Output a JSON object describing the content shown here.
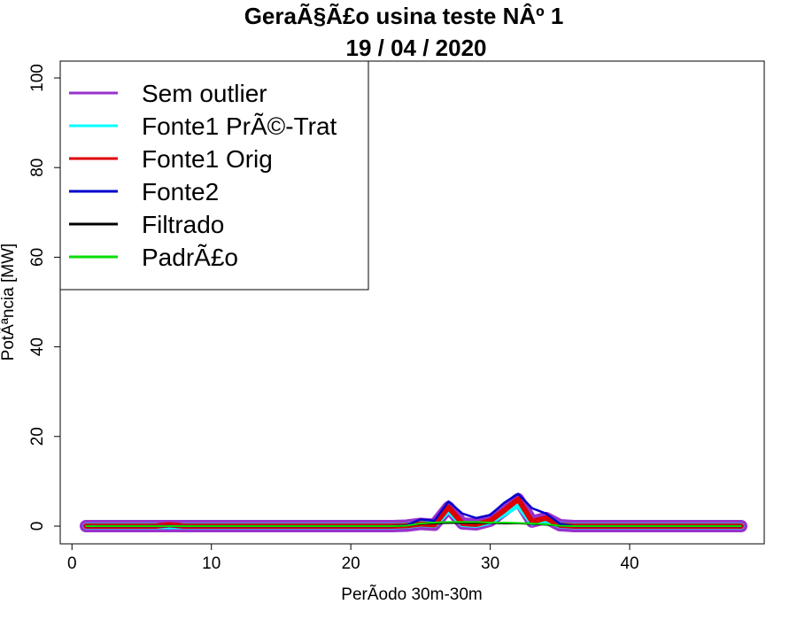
{
  "chart_data": {
    "type": "line",
    "title": "GeraÃ§Ã£o usina teste NÂº 1",
    "subtitle": "19 / 04 / 2020",
    "xlabel": "PerÃ­odo 30m-30m",
    "ylabel": "PotÃªncia [MW]",
    "xlim": [
      1,
      48
    ],
    "ylim": [
      0,
      100
    ],
    "x_ticks": [
      0,
      10,
      20,
      30,
      40
    ],
    "y_ticks": [
      0,
      20,
      40,
      60,
      80,
      100
    ],
    "grid": false,
    "legend_position": "top-left",
    "x": [
      1,
      2,
      3,
      4,
      5,
      6,
      7,
      8,
      9,
      10,
      11,
      12,
      13,
      14,
      15,
      16,
      17,
      18,
      19,
      20,
      21,
      22,
      23,
      24,
      25,
      26,
      27,
      28,
      29,
      30,
      31,
      32,
      33,
      34,
      35,
      36,
      37,
      38,
      39,
      40,
      41,
      42,
      43,
      44,
      45,
      46,
      47,
      48
    ],
    "series": [
      {
        "name": "Sem outlier",
        "color": "#9932CC",
        "values": [
          0,
          0,
          0,
          0,
          0,
          0,
          0,
          0,
          0,
          0,
          0,
          0,
          0,
          0,
          0,
          0,
          0,
          0,
          0,
          0,
          0,
          0,
          0,
          0.1,
          0.5,
          0.3,
          4.2,
          0.6,
          0.4,
          1.2,
          3.5,
          6.0,
          1.0,
          1.8,
          0.2,
          0,
          0,
          0,
          0,
          0,
          0,
          0,
          0,
          0,
          0,
          0,
          0,
          0
        ]
      },
      {
        "name": "Fonte1 PrÃ©-Trat",
        "color": "#00FFFF",
        "values": [
          0,
          0,
          0,
          0,
          0,
          0,
          0,
          0,
          0,
          0,
          0,
          0,
          0,
          0,
          0,
          0,
          0,
          0,
          0,
          0,
          0,
          0,
          0,
          0.1,
          0.5,
          0.3,
          3.6,
          0.5,
          0.3,
          1.0,
          2.8,
          4.8,
          0.8,
          1.4,
          0.2,
          0,
          0,
          0,
          0,
          0,
          0,
          0,
          0,
          0,
          0,
          0,
          0,
          0
        ]
      },
      {
        "name": "Fonte1 Orig",
        "color": "#DD0000",
        "values": [
          0,
          0,
          0,
          0,
          0,
          0,
          0.3,
          0,
          0,
          0,
          0,
          0,
          0,
          0,
          0,
          0,
          0,
          0,
          0,
          0,
          0,
          0,
          0,
          0.1,
          0.5,
          0.3,
          4.2,
          0.6,
          0.4,
          1.2,
          3.5,
          6.0,
          1.0,
          1.8,
          0.2,
          0,
          0,
          0,
          0,
          0,
          0,
          0,
          0,
          0,
          0,
          0,
          0,
          0
        ]
      },
      {
        "name": "Fonte2",
        "color": "#0000CC",
        "values": [
          0,
          0,
          0,
          0,
          0,
          0,
          0,
          0,
          0,
          0,
          0,
          0,
          0,
          0,
          0,
          0,
          0,
          0,
          0,
          0,
          0,
          0,
          0,
          0.2,
          1.5,
          1.2,
          5.5,
          2.8,
          1.8,
          2.5,
          5.2,
          7.2,
          4.0,
          2.8,
          0.5,
          0,
          0,
          0,
          0,
          0,
          0,
          0,
          0,
          0,
          0,
          0,
          0,
          0
        ]
      },
      {
        "name": "Filtrado",
        "color": "#000000",
        "values": [
          0,
          0,
          0,
          0,
          0,
          0,
          0,
          0,
          0,
          0,
          0,
          0,
          0,
          0,
          0,
          0,
          0,
          0,
          0,
          0,
          0,
          0,
          0,
          0.1,
          0.5,
          0.6,
          0.7,
          0.7,
          0.7,
          0.7,
          0.6,
          0.6,
          0.5,
          0.3,
          0.1,
          0,
          0,
          0,
          0,
          0,
          0,
          0,
          0,
          0,
          0,
          0,
          0,
          0
        ]
      },
      {
        "name": "PadrÃ£o",
        "color": "#00DD00",
        "values": [
          0,
          0,
          0,
          0,
          0,
          0,
          0,
          0,
          0,
          0,
          0,
          0,
          0,
          0,
          0,
          0,
          0,
          0,
          0,
          0,
          0,
          0,
          0,
          0.1,
          0.6,
          0.8,
          0.9,
          0.9,
          0.9,
          0.8,
          0.8,
          0.7,
          0.6,
          0.4,
          0.1,
          0,
          0,
          0,
          0,
          0,
          0,
          0,
          0,
          0,
          0,
          0,
          0,
          0
        ]
      }
    ]
  }
}
